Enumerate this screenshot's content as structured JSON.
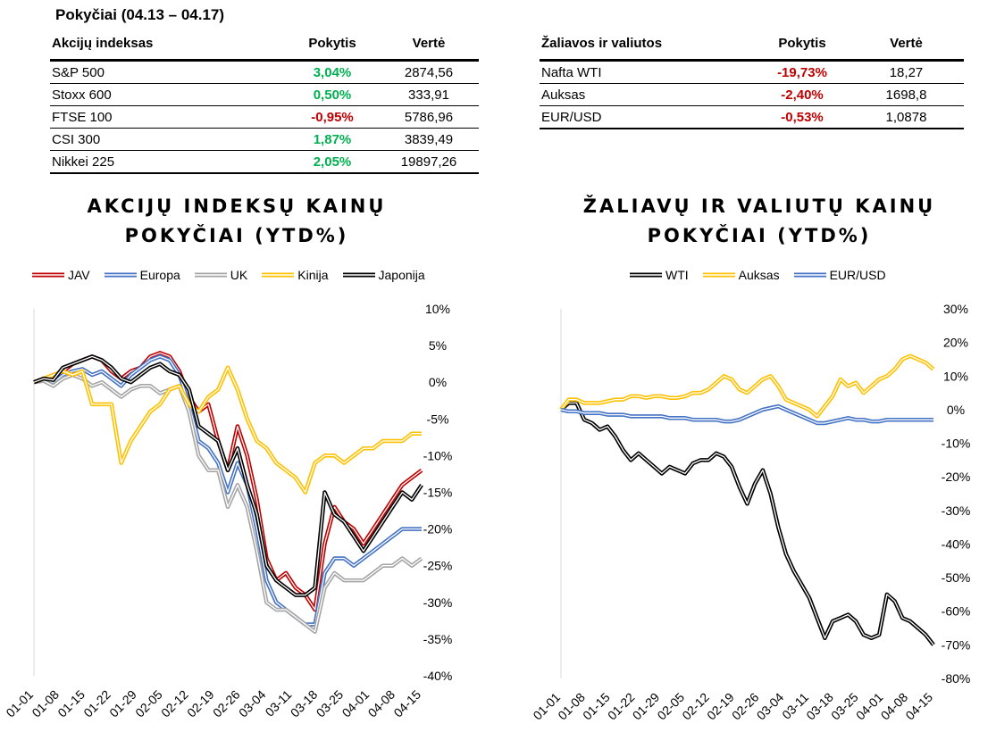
{
  "page_title": "Pokyčiai (04.13 – 04.17)",
  "indices_table": {
    "headers": [
      "Akcijų indeksas",
      "Pokytis",
      "Vertė"
    ],
    "rows": [
      {
        "name": "S&P 500",
        "change": "3,04%",
        "value": "2874,56"
      },
      {
        "name": "Stoxx 600",
        "change": "0,50%",
        "value": "333,91"
      },
      {
        "name": "FTSE 100",
        "change": "-0,95%",
        "value": "5786,96"
      },
      {
        "name": "CSI 300",
        "change": "1,87%",
        "value": "3839,49"
      },
      {
        "name": "Nikkei 225",
        "change": "2,05%",
        "value": "19897,26"
      }
    ]
  },
  "commodities_table": {
    "headers": [
      "Žaliavos ir valiutos",
      "Pokytis",
      "Vertė"
    ],
    "rows": [
      {
        "name": "Nafta WTI",
        "change": "-19,73%",
        "value": "18,27"
      },
      {
        "name": "Auksas",
        "change": "-2,40%",
        "value": "1698,8"
      },
      {
        "name": "EUR/USD",
        "change": "-0,53%",
        "value": "1,0878"
      }
    ]
  },
  "colors": {
    "positive": "#00B050",
    "negative": "#C00000"
  },
  "chart_data": [
    {
      "type": "line",
      "title": "AKCIJŲ INDEKSŲ KAINŲ POKYČIAI (YTD%)",
      "title_lines": [
        "AKCIJŲ INDEKSŲ KAINŲ",
        "POKYČIAI (YTD%)"
      ],
      "xlabel": "",
      "ylabel": "",
      "x_ticks": [
        "01-01",
        "01-08",
        "01-15",
        "01-22",
        "01-29",
        "02-05",
        "02-12",
        "02-19",
        "02-26",
        "03-04",
        "03-11",
        "03-18",
        "03-25",
        "04-01",
        "04-08",
        "04-15"
      ],
      "ylim": [
        -40,
        10
      ],
      "y_ticks": [
        "10%",
        "5%",
        "0%",
        "-5%",
        "-10%",
        "-15%",
        "-20%",
        "-25%",
        "-30%",
        "-35%",
        "-40%"
      ],
      "grid": false,
      "legend": "top",
      "series": [
        {
          "name": "JAV",
          "color": "#C00000",
          "values": [
            0,
            0.5,
            0.2,
            1.5,
            2.5,
            3,
            3.5,
            3,
            1.5,
            0.5,
            1.5,
            2,
            3.5,
            4,
            3.5,
            1.5,
            -2,
            -4,
            -3,
            -8,
            -12,
            -6,
            -10,
            -16,
            -24,
            -27,
            -26,
            -28,
            -29,
            -31,
            -22,
            -17,
            -19,
            -20,
            -22,
            -20,
            -18,
            -16,
            -14,
            -13,
            -12
          ]
        },
        {
          "name": "Europa",
          "color": "#4472C4",
          "values": [
            0,
            0.3,
            0,
            1,
            1.5,
            1.8,
            1,
            1.5,
            0.5,
            -0.5,
            1,
            2,
            3,
            3.5,
            3,
            1,
            -3,
            -8,
            -9,
            -11,
            -15,
            -11,
            -14,
            -20,
            -27,
            -30,
            -31,
            -32,
            -33,
            -33,
            -26,
            -24,
            -24,
            -25,
            -24,
            -23,
            -22,
            -21,
            -20,
            -20,
            -20
          ]
        },
        {
          "name": "UK",
          "color": "#A5A5A5",
          "values": [
            0,
            0.2,
            -0.5,
            0.5,
            1,
            0.5,
            -0.5,
            0,
            -1,
            -2,
            -1,
            -0.5,
            -0.5,
            -1.5,
            -1,
            -0.5,
            -4,
            -10,
            -12,
            -12,
            -17,
            -14,
            -17,
            -23,
            -30,
            -31,
            -31,
            -32,
            -33,
            -34,
            -28,
            -26,
            -27,
            -27,
            -27,
            -26,
            -25,
            -25,
            -24,
            -25,
            -24
          ]
        },
        {
          "name": "Kinija",
          "color": "#FFC000",
          "values": [
            0,
            0.5,
            1,
            1.5,
            1,
            1.5,
            -3,
            -3,
            -3,
            -11,
            -8,
            -6,
            -4,
            -3,
            -1,
            -0.5,
            -3,
            -4,
            -2,
            -1,
            2,
            -1,
            -5,
            -8,
            -9,
            -11,
            -12,
            -13,
            -15,
            -11,
            -10,
            -10,
            -11,
            -10,
            -9,
            -9,
            -8,
            -8,
            -8,
            -7,
            -7
          ]
        },
        {
          "name": "Japonija",
          "color": "#000000",
          "values": [
            0,
            0.5,
            0.3,
            2,
            2.5,
            3,
            3.5,
            3,
            2,
            0.5,
            0,
            1,
            2,
            2.5,
            1.5,
            1,
            -1,
            -6,
            -7,
            -8,
            -12,
            -9,
            -14,
            -18,
            -25,
            -27,
            -28,
            -29,
            -29,
            -28,
            -15,
            -18,
            -19,
            -21,
            -23,
            -21,
            -19,
            -17,
            -15,
            -16,
            -14
          ]
        }
      ]
    },
    {
      "type": "line",
      "title": "ŽALIAVŲ IR VALIUTŲ KAINŲ POKYČIAI (YTD%)",
      "title_lines": [
        "ŽALIAVŲ IR VALIUTŲ KAINŲ",
        "POKYČIAI (YTD%)"
      ],
      "xlabel": "",
      "ylabel": "",
      "x_ticks": [
        "01-01",
        "01-08",
        "01-15",
        "01-22",
        "01-29",
        "02-05",
        "02-12",
        "02-19",
        "02-26",
        "03-04",
        "03-11",
        "03-18",
        "03-25",
        "04-01",
        "04-08",
        "04-15"
      ],
      "ylim": [
        -80,
        30
      ],
      "y_ticks": [
        "30%",
        "20%",
        "10%",
        "0%",
        "-10%",
        "-20%",
        "-30%",
        "-40%",
        "-50%",
        "-60%",
        "-70%",
        "-80%"
      ],
      "grid": false,
      "legend": "top",
      "series": [
        {
          "name": "WTI",
          "color": "#000000",
          "values": [
            0,
            2,
            2,
            -3,
            -4,
            -6,
            -5,
            -8,
            -12,
            -15,
            -13,
            -15,
            -17,
            -19,
            -17,
            -18,
            -19,
            -16,
            -15,
            -15,
            -13,
            -14,
            -17,
            -23,
            -28,
            -22,
            -18,
            -25,
            -35,
            -43,
            -48,
            -52,
            -56,
            -62,
            -68,
            -63,
            -62,
            -61,
            -63,
            -67,
            -68,
            -67,
            -55,
            -57,
            -62,
            -63,
            -65,
            -67,
            -70
          ]
        },
        {
          "name": "Auksas",
          "color": "#FFC000",
          "values": [
            0,
            3,
            3,
            2,
            2,
            2,
            2.5,
            3,
            3,
            4,
            4,
            3.5,
            4,
            4,
            3.5,
            3.5,
            4,
            5,
            5,
            6,
            8,
            10,
            9,
            6,
            5,
            7,
            9,
            10,
            7,
            3,
            2,
            1,
            0,
            -2,
            1,
            4,
            9,
            7,
            8,
            5,
            7,
            9,
            10,
            12,
            15,
            16,
            15,
            14,
            12
          ]
        },
        {
          "name": "EUR/USD",
          "color": "#4472C4",
          "values": [
            0,
            -0.5,
            -0.5,
            -1,
            -1,
            -1,
            -1.5,
            -1.5,
            -1.5,
            -2,
            -2,
            -2,
            -2,
            -2,
            -2.5,
            -2.5,
            -2.5,
            -3,
            -3,
            -3,
            -3,
            -3.5,
            -3.5,
            -3,
            -2,
            -1,
            0,
            0.5,
            1,
            0,
            -1,
            -2,
            -3,
            -4,
            -4,
            -3.5,
            -3,
            -2.5,
            -3,
            -3,
            -3.5,
            -3.5,
            -3,
            -3,
            -3,
            -3,
            -3,
            -3,
            -3
          ]
        }
      ]
    }
  ]
}
